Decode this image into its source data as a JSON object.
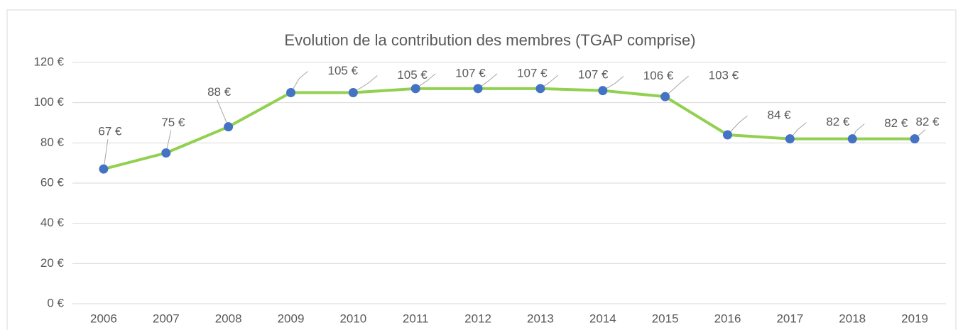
{
  "chart_data": {
    "type": "line",
    "title": "Evolution de la contribution des membres (TGAP comprise)",
    "categories": [
      "2006",
      "2007",
      "2008",
      "2009",
      "2010",
      "2011",
      "2012",
      "2013",
      "2014",
      "2015",
      "2016",
      "2017",
      "2018",
      "2019"
    ],
    "values": [
      67,
      75,
      88,
      105,
      105,
      107,
      107,
      107,
      106,
      103,
      84,
      82,
      82,
      82
    ],
    "value_labels": [
      "67 €",
      "75 €",
      "88 €",
      "105 €",
      "105 €",
      "107 €",
      "107 €",
      "107 €",
      "106 €",
      "103 €",
      "84 €",
      "82 €",
      "82 €",
      "82 €"
    ],
    "color": "#92d050",
    "marker_color": "#4472c4",
    "ylim": [
      0,
      120
    ],
    "yticks": [
      {
        "value": 0,
        "label": "0 €"
      },
      {
        "value": 20,
        "label": "20 €"
      },
      {
        "value": 40,
        "label": "40 €"
      },
      {
        "value": 60,
        "label": "60 €"
      },
      {
        "value": 80,
        "label": "80 €"
      },
      {
        "value": 100,
        "label": "100 €"
      },
      {
        "value": 120,
        "label": "120 €"
      }
    ],
    "grid": true
  }
}
